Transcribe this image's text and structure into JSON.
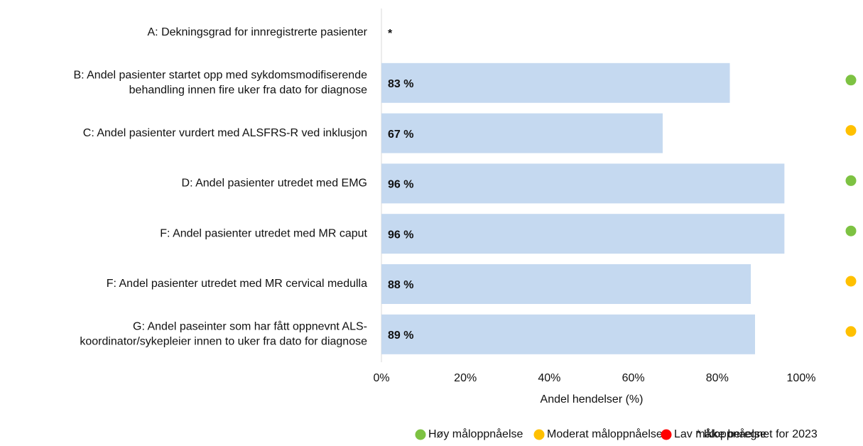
{
  "chart_data": {
    "type": "barh",
    "categories": [
      [
        "A: Dekningsgrad for innregistrerte pasienter"
      ],
      [
        "B: Andel pasienter startet opp med sykdomsmodifiserende",
        "behandling innen fire uker fra dato for diagnose"
      ],
      [
        "C: Andel pasienter vurdert med ALSFRS-R ved inklusjon"
      ],
      [
        "D: Andel pasienter utredet med EMG"
      ],
      [
        "F: Andel pasienter utredet med MR caput"
      ],
      [
        "F: Andel pasienter utredet med MR cervical medulla"
      ],
      [
        "G: Andel paseinter som har fått oppnevnt ALS-",
        "koordinator/sykepleier innen to uker fra dato for diagnose"
      ]
    ],
    "values": [
      null,
      83,
      67,
      96,
      96,
      88,
      89
    ],
    "value_labels": [
      "*",
      "83 %",
      "67 %",
      "96 %",
      "96 %",
      "88 %",
      "89 %"
    ],
    "color": "#c5d9f0",
    "status_colors": [
      null,
      "#7dc242",
      "#ffc000",
      "#7dc242",
      "#7dc242",
      "#ffc000",
      "#ffc000"
    ],
    "xlim": [
      0,
      100
    ],
    "xticks": [
      {
        "value": 0,
        "label": "0%"
      },
      {
        "value": 20,
        "label": "20%"
      },
      {
        "value": 40,
        "label": "40%"
      },
      {
        "value": 60,
        "label": "60%"
      },
      {
        "value": 80,
        "label": "80%"
      },
      {
        "value": 100,
        "label": "100%"
      }
    ],
    "x_label": "Andel hendelser (%)",
    "legend": [
      {
        "name": "Høy måloppnåelse",
        "color": "#7dc242"
      },
      {
        "name": "Moderat måloppnåelse",
        "color": "#ffc000"
      },
      {
        "name": "Lav måloppnåelse",
        "color": "#ff0000"
      }
    ],
    "legend_note": "* Ikke beregnet for 2023"
  }
}
